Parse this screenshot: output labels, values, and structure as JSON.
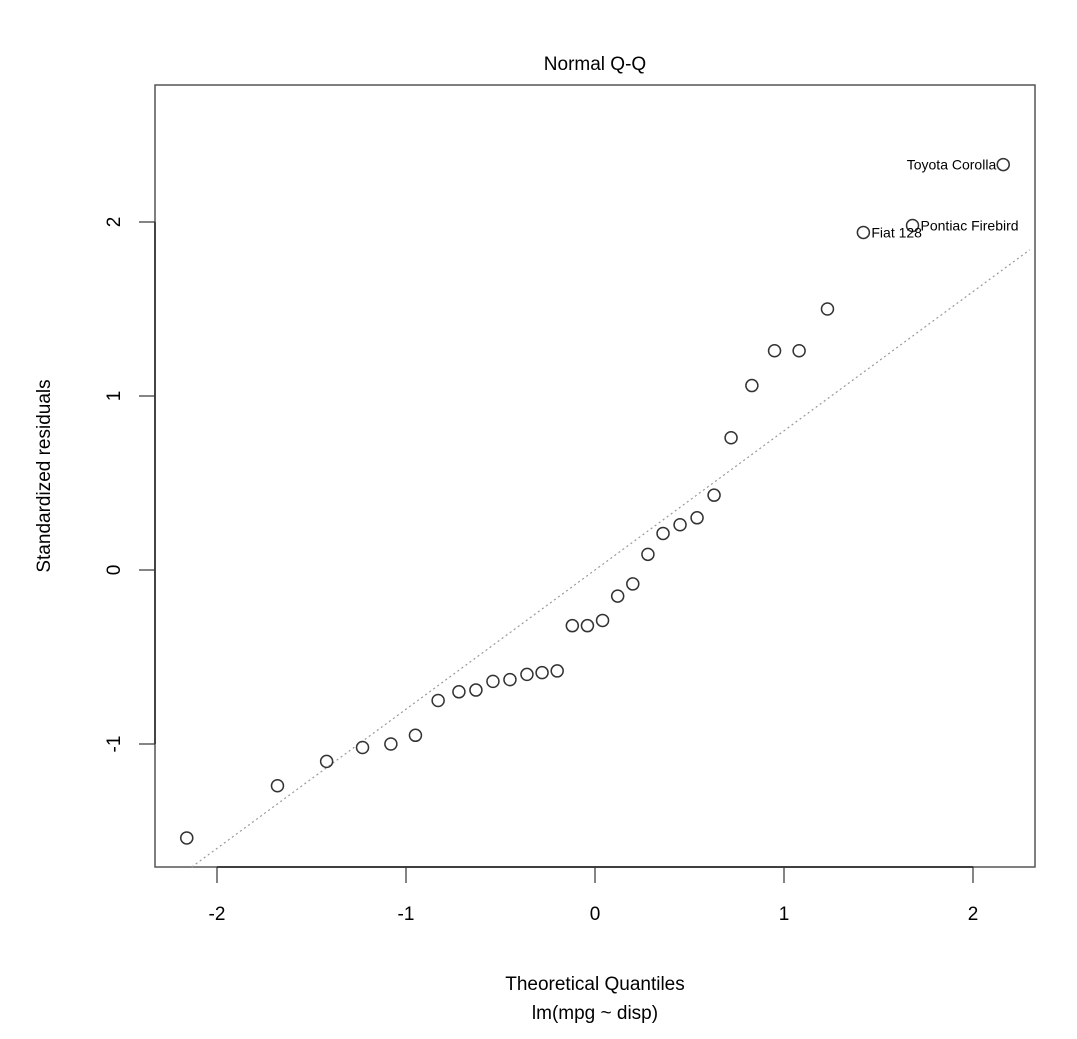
{
  "chart_data": {
    "type": "scatter",
    "title": "Normal Q-Q",
    "xlabel": "Theoretical Quantiles",
    "subtitle": "lm(mpg ~ disp)",
    "ylabel": "Standardized residuals",
    "xlim": [
      -2.3,
      2.3
    ],
    "ylim": [
      -1.71,
      2.78
    ],
    "x_ticks": [
      -2,
      -1,
      0,
      1,
      2
    ],
    "y_ticks": [
      -1,
      0,
      1,
      2
    ],
    "grid": false,
    "legend": null,
    "reference_line": {
      "style": "dotted",
      "color": "#999999",
      "slope": 0.8,
      "intercept": 0.0
    },
    "points": [
      {
        "x": -2.16,
        "y": -1.54
      },
      {
        "x": -1.68,
        "y": -1.24
      },
      {
        "x": -1.42,
        "y": -1.1
      },
      {
        "x": -1.23,
        "y": -1.02
      },
      {
        "x": -1.08,
        "y": -1.0
      },
      {
        "x": -0.95,
        "y": -0.95
      },
      {
        "x": -0.83,
        "y": -0.75
      },
      {
        "x": -0.72,
        "y": -0.7
      },
      {
        "x": -0.63,
        "y": -0.69
      },
      {
        "x": -0.54,
        "y": -0.64
      },
      {
        "x": -0.45,
        "y": -0.63
      },
      {
        "x": -0.36,
        "y": -0.6
      },
      {
        "x": -0.28,
        "y": -0.59
      },
      {
        "x": -0.2,
        "y": -0.58
      },
      {
        "x": -0.12,
        "y": -0.32
      },
      {
        "x": -0.04,
        "y": -0.32
      },
      {
        "x": 0.04,
        "y": -0.29
      },
      {
        "x": 0.12,
        "y": -0.15
      },
      {
        "x": 0.2,
        "y": -0.08
      },
      {
        "x": 0.28,
        "y": 0.09
      },
      {
        "x": 0.36,
        "y": 0.21
      },
      {
        "x": 0.45,
        "y": 0.26
      },
      {
        "x": 0.54,
        "y": 0.3
      },
      {
        "x": 0.63,
        "y": 0.43
      },
      {
        "x": 0.72,
        "y": 0.76
      },
      {
        "x": 0.83,
        "y": 1.06
      },
      {
        "x": 0.95,
        "y": 1.26
      },
      {
        "x": 1.08,
        "y": 1.26
      },
      {
        "x": 1.23,
        "y": 1.5
      },
      {
        "x": 1.42,
        "y": 1.94,
        "label": "Fiat 128"
      },
      {
        "x": 1.68,
        "y": 1.98,
        "label": "Pontiac Firebird"
      },
      {
        "x": 2.16,
        "y": 2.33,
        "label": "Toyota Corolla"
      }
    ]
  }
}
